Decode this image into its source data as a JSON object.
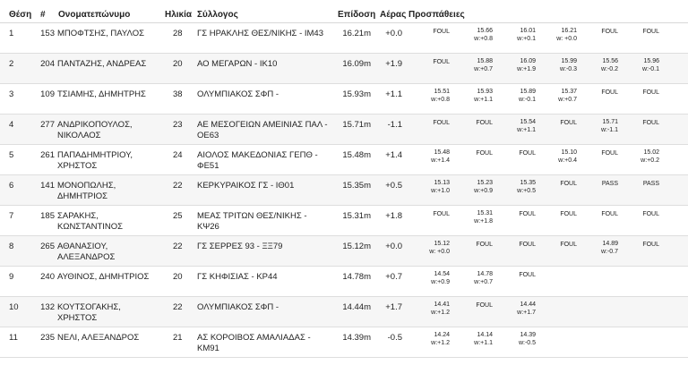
{
  "headers": {
    "pos": "Θέση",
    "num": "#",
    "name": "Ονοματεπώνυμο",
    "age": "Ηλικία",
    "club": "Σύλλογος",
    "perf": "Επίδοση",
    "wind": "Αέρας",
    "attempts": "Προσπάθειες"
  },
  "rows": [
    {
      "pos": "1",
      "num": "153",
      "name": "ΜΠΟΦΤΣΗΣ, ΠΑΥΛΟΣ",
      "age": "28",
      "club": "ΓΣ ΗΡΑΚΛΗΣ ΘΕΣ/ΝΙΚΗΣ - ΙΜ43",
      "perf": "16.21m",
      "wind": "+0.0",
      "attempts": [
        {
          "v": "FOUL",
          "w": ""
        },
        {
          "v": "15.66",
          "w": "w:+0.8"
        },
        {
          "v": "16.01",
          "w": "w:+0.1"
        },
        {
          "v": "16.21",
          "w": "w: +0.0"
        },
        {
          "v": "FOUL",
          "w": ""
        },
        {
          "v": "FOUL",
          "w": ""
        }
      ]
    },
    {
      "pos": "2",
      "num": "204",
      "name": "ΠΑΝΤΑΖΗΣ, ΑΝΔΡΕΑΣ",
      "age": "20",
      "club": "ΑΟ ΜΕΓΑΡΩΝ - ΙΚ10",
      "perf": "16.09m",
      "wind": "+1.9",
      "attempts": [
        {
          "v": "FOUL",
          "w": ""
        },
        {
          "v": "15.88",
          "w": "w:+0.7"
        },
        {
          "v": "16.09",
          "w": "w:+1.9"
        },
        {
          "v": "15.99",
          "w": "w:-0.3"
        },
        {
          "v": "15.56",
          "w": "w:-0.2"
        },
        {
          "v": "15.96",
          "w": "w:-0.1"
        }
      ]
    },
    {
      "pos": "3",
      "num": "109",
      "name": "ΤΣΙΑΜΗΣ, ΔΗΜΗΤΡΗΣ",
      "age": "38",
      "club": "ΟΛΥΜΠΙΑΚΟΣ ΣΦΠ -",
      "perf": "15.93m",
      "wind": "+1.1",
      "attempts": [
        {
          "v": "15.51",
          "w": "w:+0.8"
        },
        {
          "v": "15.93",
          "w": "w:+1.1"
        },
        {
          "v": "15.89",
          "w": "w:-0.1"
        },
        {
          "v": "15.37",
          "w": "w:+0.7"
        },
        {
          "v": "FOUL",
          "w": ""
        },
        {
          "v": "FOUL",
          "w": ""
        }
      ]
    },
    {
      "pos": "4",
      "num": "277",
      "name": "ΑΝΔΡΙΚΟΠΟΥΛΟΣ, ΝΙΚΟΛΑΟΣ",
      "age": "23",
      "club": "ΑΕ ΜΕΣΟΓΕΙΩΝ ΑΜΕΙΝΙΑΣ ΠΑΛ - ΟΕ63",
      "perf": "15.71m",
      "wind": "-1.1",
      "attempts": [
        {
          "v": "FOUL",
          "w": ""
        },
        {
          "v": "FOUL",
          "w": ""
        },
        {
          "v": "15.54",
          "w": "w:+1.1"
        },
        {
          "v": "FOUL",
          "w": ""
        },
        {
          "v": "15.71",
          "w": "w:-1.1"
        },
        {
          "v": "FOUL",
          "w": ""
        }
      ]
    },
    {
      "pos": "5",
      "num": "261",
      "name": "ΠΑΠΑΔΗΜΗΤΡΙΟΥ, ΧΡΗΣΤΟΣ",
      "age": "24",
      "club": "ΑΙΟΛΟΣ ΜΑΚΕΔΟΝΙΑΣ ΓΕΠΘ - ΦΕ51",
      "perf": "15.48m",
      "wind": "+1.4",
      "attempts": [
        {
          "v": "15.48",
          "w": "w:+1.4"
        },
        {
          "v": "FOUL",
          "w": ""
        },
        {
          "v": "FOUL",
          "w": ""
        },
        {
          "v": "15.10",
          "w": "w:+0.4"
        },
        {
          "v": "FOUL",
          "w": ""
        },
        {
          "v": "15.02",
          "w": "w:+0.2"
        }
      ]
    },
    {
      "pos": "6",
      "num": "141",
      "name": "ΜΟΝΟΠΩΛΗΣ, ΔΗΜΗΤΡΙΟΣ",
      "age": "22",
      "club": "ΚΕΡΚΥΡΑΙΚΟΣ ΓΣ - ΙΘ01",
      "perf": "15.35m",
      "wind": "+0.5",
      "attempts": [
        {
          "v": "15.13",
          "w": "w:+1.0"
        },
        {
          "v": "15.23",
          "w": "w:+0.9"
        },
        {
          "v": "15.35",
          "w": "w:+0.5"
        },
        {
          "v": "FOUL",
          "w": ""
        },
        {
          "v": "PASS",
          "w": ""
        },
        {
          "v": "PASS",
          "w": ""
        }
      ]
    },
    {
      "pos": "7",
      "num": "185",
      "name": "ΣΑΡΑΚΗΣ, ΚΩΝΣΤΑΝΤΙΝΟΣ",
      "age": "25",
      "club": "ΜΕΑΣ ΤΡΙΤΩΝ ΘΕΣ/ΝΙΚΗΣ - ΚΨ26",
      "perf": "15.31m",
      "wind": "+1.8",
      "attempts": [
        {
          "v": "FOUL",
          "w": ""
        },
        {
          "v": "15.31",
          "w": "w:+1.8"
        },
        {
          "v": "FOUL",
          "w": ""
        },
        {
          "v": "FOUL",
          "w": ""
        },
        {
          "v": "FOUL",
          "w": ""
        },
        {
          "v": "FOUL",
          "w": ""
        }
      ]
    },
    {
      "pos": "8",
      "num": "265",
      "name": "ΑΘΑΝΑΣΙΟΥ, ΑΛΕΞΑΝΔΡΟΣ",
      "age": "22",
      "club": "ΓΣ ΣΕΡΡΕΣ 93 - ΞΞ79",
      "perf": "15.12m",
      "wind": "+0.0",
      "attempts": [
        {
          "v": "15.12",
          "w": "w: +0.0"
        },
        {
          "v": "FOUL",
          "w": ""
        },
        {
          "v": "FOUL",
          "w": ""
        },
        {
          "v": "FOUL",
          "w": ""
        },
        {
          "v": "14.89",
          "w": "w:-0.7"
        },
        {
          "v": "FOUL",
          "w": ""
        }
      ]
    },
    {
      "pos": "9",
      "num": "240",
      "name": "ΑΥΘΙΝΟΣ, ΔΗΜΗΤΡΙΟΣ",
      "age": "20",
      "club": "ΓΣ ΚΗΦΙΣΙΑΣ - ΚΡ44",
      "perf": "14.78m",
      "wind": "+0.7",
      "attempts": [
        {
          "v": "14.54",
          "w": "w:+0.9"
        },
        {
          "v": "14.78",
          "w": "w:+0.7"
        },
        {
          "v": "FOUL",
          "w": ""
        }
      ]
    },
    {
      "pos": "10",
      "num": "132",
      "name": "ΚΟΥΤΣΟΓΑΚΗΣ, ΧΡΗΣΤΟΣ",
      "age": "22",
      "club": "ΟΛΥΜΠΙΑΚΟΣ ΣΦΠ -",
      "perf": "14.44m",
      "wind": "+1.7",
      "attempts": [
        {
          "v": "14.41",
          "w": "w:+1.2"
        },
        {
          "v": "FOUL",
          "w": ""
        },
        {
          "v": "14.44",
          "w": "w:+1.7"
        }
      ]
    },
    {
      "pos": "11",
      "num": "235",
      "name": "ΝΕΛΙ, ΑΛΕΞΑΝΔΡΟΣ",
      "age": "21",
      "club": "ΑΣ ΚΟΡΟΙΒΟΣ ΑΜΑΛΙΑΔΑΣ - ΚΜ91",
      "perf": "14.39m",
      "wind": "-0.5",
      "attempts": [
        {
          "v": "14.24",
          "w": "w:+1.2"
        },
        {
          "v": "14.14",
          "w": "w:+1.1"
        },
        {
          "v": "14.39",
          "w": "w:-0.5"
        }
      ]
    }
  ]
}
